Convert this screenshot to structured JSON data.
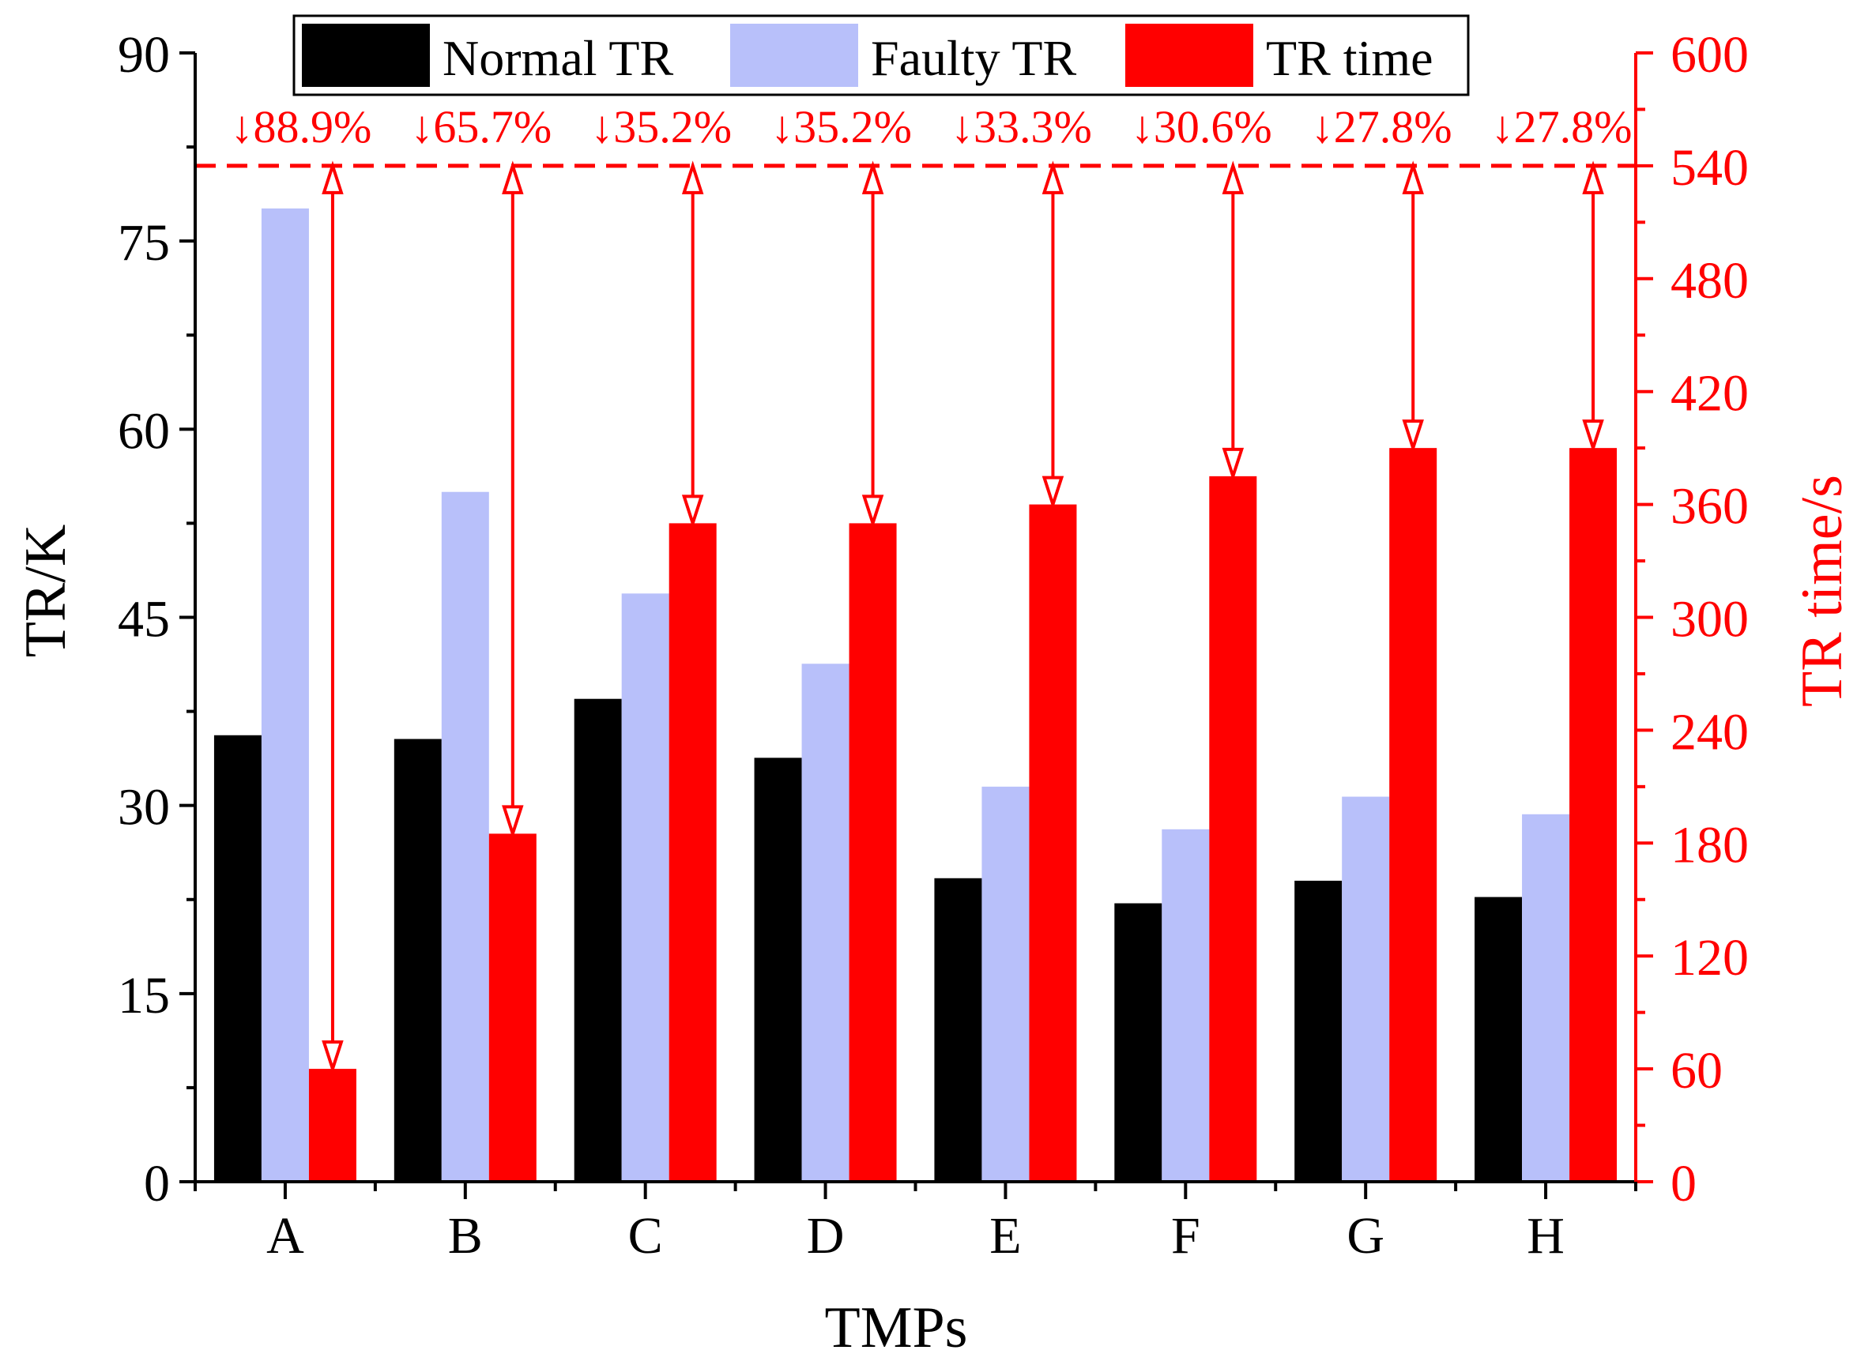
{
  "colors": {
    "normal": "#000000",
    "faulty": "#b8c0fa",
    "time": "#ff0000",
    "axis_left": "#000000",
    "axis_right": "#ff0000"
  },
  "chart_data": {
    "type": "bar",
    "categories": [
      "A",
      "B",
      "C",
      "D",
      "E",
      "F",
      "G",
      "H"
    ],
    "series": [
      {
        "name": "Normal TR",
        "axis": "left",
        "values": [
          35.6,
          35.3,
          38.5,
          33.8,
          24.2,
          22.2,
          24.0,
          22.7
        ]
      },
      {
        "name": "Faulty TR",
        "axis": "left",
        "values": [
          77.6,
          55.0,
          46.9,
          41.3,
          31.5,
          28.1,
          30.7,
          29.3
        ]
      },
      {
        "name": "TR time",
        "axis": "right",
        "values": [
          60,
          185,
          350,
          350,
          360,
          375,
          390,
          390
        ]
      }
    ],
    "reference_line": {
      "axis": "right",
      "value": 540,
      "style": "dashed"
    },
    "reduction_labels": [
      "↓88.9%",
      "↓65.7%",
      "↓35.2%",
      "↓35.2%",
      "↓33.3%",
      "↓30.6%",
      "↓27.8%",
      "↓27.8%"
    ],
    "xlabel": "TMPs",
    "ylabel": "TR/K",
    "y2label": "TR time/s",
    "ylim": [
      0,
      90
    ],
    "y2lim": [
      0,
      600
    ],
    "yticks": [
      0,
      15,
      30,
      45,
      60,
      75,
      90
    ],
    "y2ticks": [
      0,
      60,
      120,
      180,
      240,
      300,
      360,
      420,
      480,
      540,
      600
    ],
    "legend": {
      "position": "top-center",
      "entries": [
        "Normal TR",
        "Faulty TR",
        "TR time"
      ]
    }
  }
}
